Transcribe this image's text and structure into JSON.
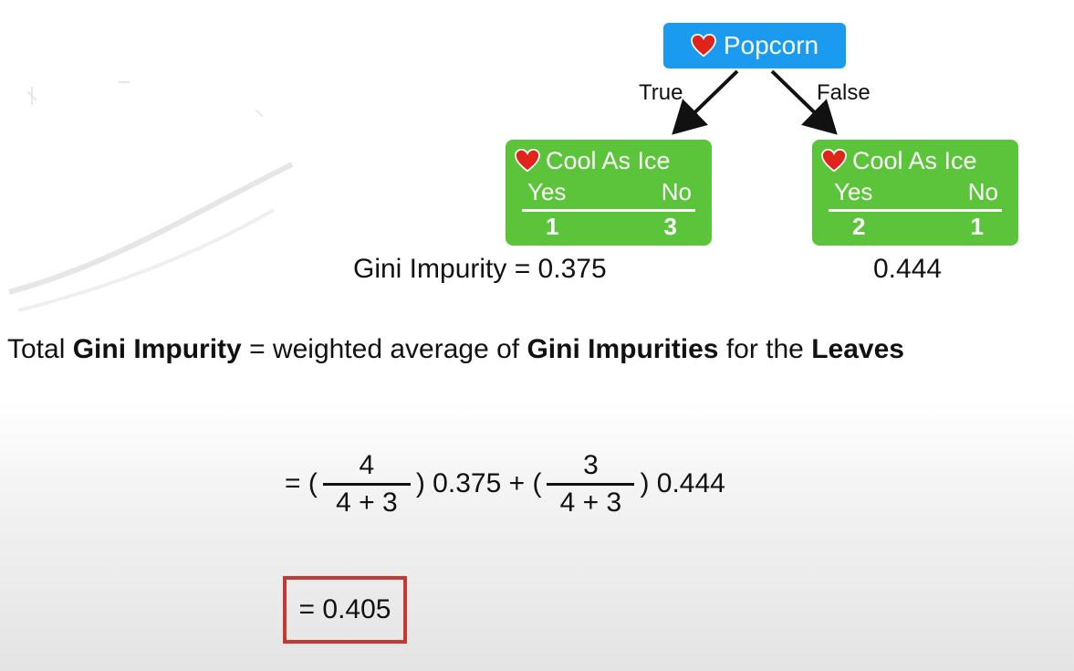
{
  "tree": {
    "root": {
      "label": "Popcorn"
    },
    "edge_true": "True",
    "edge_false": "False",
    "left_leaf": {
      "label": "Cool As Ice",
      "yes_label": "Yes",
      "no_label": "No",
      "yes_count": "1",
      "no_count": "3"
    },
    "right_leaf": {
      "label": "Cool As Ice",
      "yes_label": "Yes",
      "no_label": "No",
      "yes_count": "2",
      "no_count": "1"
    },
    "left_gini": "Gini Impurity = 0.375",
    "right_gini": "0.444"
  },
  "total": {
    "part1": "Total ",
    "bold1": "Gini Impurity",
    "part2": " = weighted average of ",
    "bold2": "Gini Impurities",
    "part3": " for the ",
    "bold3": "Leaves"
  },
  "formula": {
    "prefix": "= (",
    "frac1_num": "4",
    "frac1_den": "4 + 3",
    "mid": ") 0.375 + (",
    "frac2_num": "3",
    "frac2_den": "4 + 3",
    "suffix": ") 0.444"
  },
  "result": "= 0.405",
  "colors": {
    "root_node": "#1a9bf0",
    "leaf_node": "#5cc43a",
    "result_border": "#c43a33",
    "heart": "#e0241b"
  },
  "icons": [
    "heart-icon"
  ]
}
